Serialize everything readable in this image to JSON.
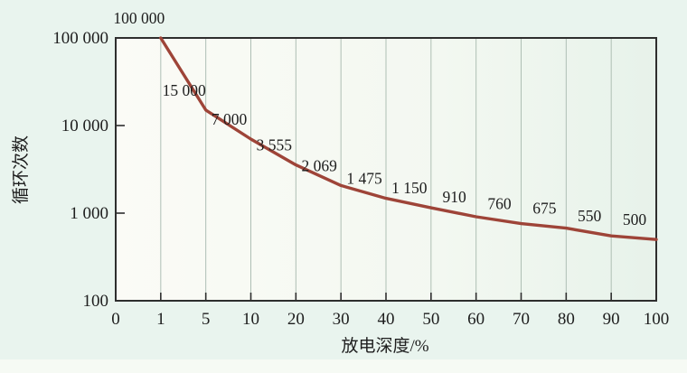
{
  "figure": {
    "background": "#e9f4ee"
  },
  "chart_data": {
    "type": "line",
    "title": "",
    "xlabel": "放电深度/%",
    "ylabel": "循环次数",
    "x_scale": "category",
    "y_scale": "log",
    "ylim": [
      100,
      100000
    ],
    "grid": "vertical",
    "legend": "none",
    "x_tick_labels": [
      "0",
      "1",
      "5",
      "10",
      "20",
      "30",
      "40",
      "50",
      "60",
      "70",
      "80",
      "90",
      "100"
    ],
    "y_tick_labels": [
      "100",
      "1 000",
      "10 000",
      "100 000"
    ],
    "y_tick_values": [
      100,
      1000,
      10000,
      100000
    ],
    "series": [
      {
        "x": [
          1,
          5,
          10,
          20,
          30,
          40,
          50,
          60,
          70,
          80,
          90,
          100
        ],
        "values": [
          100000,
          15000,
          7000,
          3555,
          2069,
          1475,
          1150,
          910,
          760,
          675,
          550,
          500
        ],
        "point_labels": [
          "100 000",
          "15 000",
          "7 000",
          "3 555",
          "2 069",
          "1 475",
          "1 150",
          "910",
          "760",
          "675",
          "550",
          "500"
        ]
      }
    ],
    "colors": {
      "curve": "#9e4438",
      "grid": "#aebfb4",
      "axis": "#2e2e2e",
      "text": "#1e1e1e",
      "plot_bg_left": "#fbfbf6",
      "plot_bg_right": "#e7f2ea"
    }
  }
}
